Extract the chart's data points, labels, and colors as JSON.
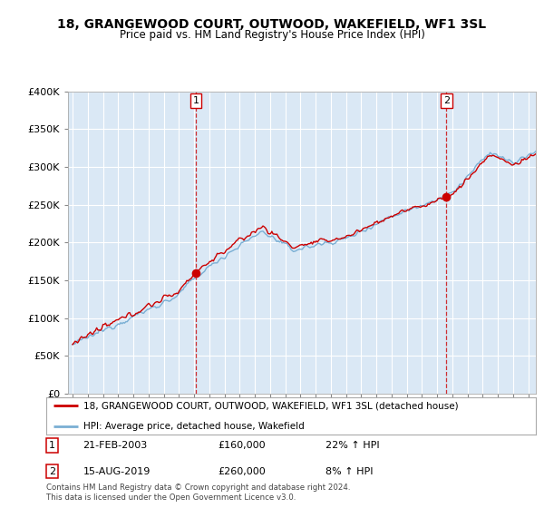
{
  "title": "18, GRANGEWOOD COURT, OUTWOOD, WAKEFIELD, WF1 3SL",
  "subtitle": "Price paid vs. HM Land Registry's House Price Index (HPI)",
  "legend_line1": "18, GRANGEWOOD COURT, OUTWOOD, WAKEFIELD, WF1 3SL (detached house)",
  "legend_line2": "HPI: Average price, detached house, Wakefield",
  "footnote": "Contains HM Land Registry data © Crown copyright and database right 2024.\nThis data is licensed under the Open Government Licence v3.0.",
  "annotation1_date": "21-FEB-2003",
  "annotation1_price": "£160,000",
  "annotation1_hpi": "22% ↑ HPI",
  "annotation2_date": "15-AUG-2019",
  "annotation2_price": "£260,000",
  "annotation2_hpi": "8% ↑ HPI",
  "red_color": "#cc0000",
  "blue_color": "#7aafd4",
  "plot_bg_color": "#dae8f5",
  "ylim_min": 0,
  "ylim_max": 400000,
  "purchase1_year": 2003.12,
  "purchase1_price": 160000,
  "purchase2_year": 2019.62,
  "purchase2_price": 260000,
  "xmin": 1995.0,
  "xmax": 2025.5
}
